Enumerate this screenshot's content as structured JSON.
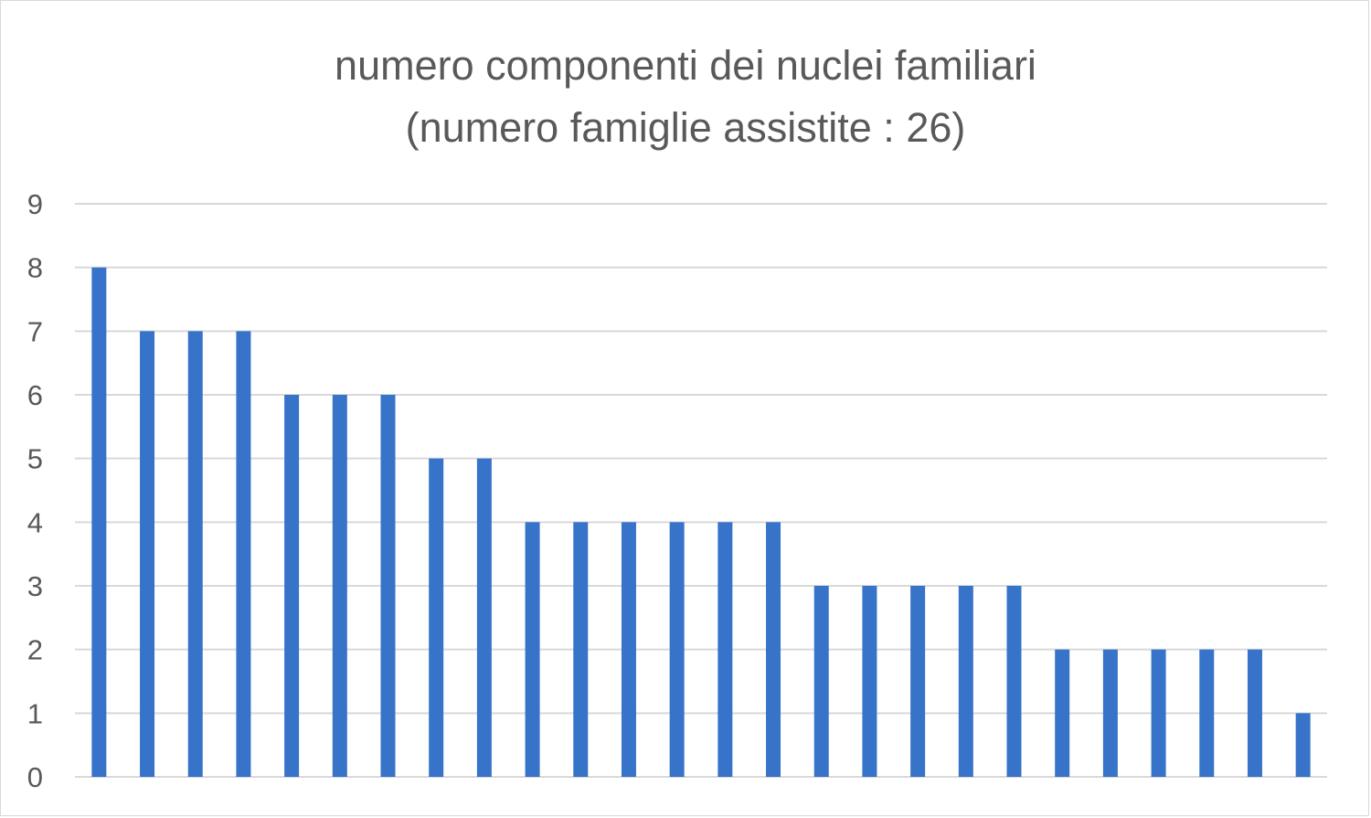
{
  "chart_data": {
    "type": "bar",
    "title": "numero componenti dei nuclei familiari",
    "subtitle": "(numero famiglie assistite : 26)",
    "xlabel": "",
    "ylabel": "",
    "categories": [
      "",
      "",
      "",
      "",
      "",
      "",
      "",
      "",
      "",
      "",
      "",
      "",
      "",
      "",
      "",
      "",
      "",
      "",
      "",
      "",
      "",
      "",
      "",
      "",
      "",
      ""
    ],
    "values": [
      8,
      7,
      7,
      7,
      6,
      6,
      6,
      5,
      5,
      4,
      4,
      4,
      4,
      4,
      4,
      3,
      3,
      3,
      3,
      3,
      2,
      2,
      2,
      2,
      2,
      1
    ],
    "ylim": [
      0,
      9
    ],
    "yticks": [
      "0",
      "1",
      "2",
      "3",
      "4",
      "5",
      "6",
      "7",
      "8",
      "9"
    ],
    "grid": true,
    "legend": "none",
    "bar_color": "#3673c9",
    "grid_color": "#d9d9d9",
    "text_color": "#595959"
  }
}
